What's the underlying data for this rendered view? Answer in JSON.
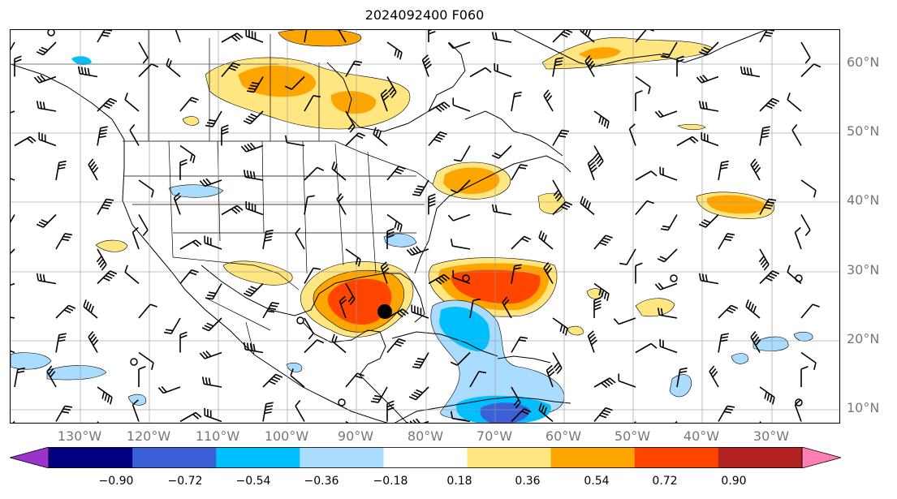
{
  "title": "2024092400 F060",
  "lat_labels": [
    "60°N",
    "50°N",
    "40°N",
    "30°N",
    "20°N",
    "10°N"
  ],
  "lon_labels": [
    "130°W",
    "120°W",
    "110°W",
    "100°W",
    "90°W",
    "80°W",
    "70°W",
    "60°W",
    "50°W",
    "40°W",
    "30°W"
  ],
  "colorbar": {
    "ticks": [
      "−0.90",
      "−0.72",
      "−0.54",
      "−0.36",
      "−0.18",
      "0.18",
      "0.36",
      "0.54",
      "0.72",
      "0.90"
    ],
    "colors": [
      "#9933cc",
      "#000080",
      "#3b5fd6",
      "#00bfff",
      "#aadcff",
      "#ffffff",
      "#ffe680",
      "#ffa500",
      "#ff4500",
      "#b22222",
      "#ff80b0"
    ]
  },
  "storm_marker": {
    "lat": 24,
    "lon": -85.5
  }
}
